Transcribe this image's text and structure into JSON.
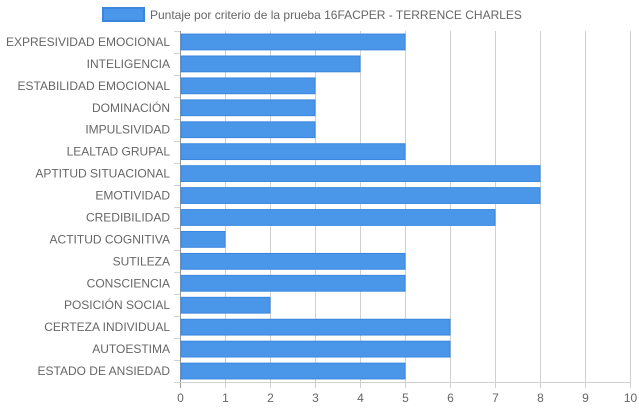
{
  "chart_data": {
    "type": "bar",
    "orientation": "horizontal",
    "title": "",
    "xlabel": "",
    "ylabel": "",
    "legend": {
      "position": "top",
      "entries": [
        "Puntaje por criterio de la prueba 16FACPER - TERRENCE CHARLES"
      ]
    },
    "grid": true,
    "xlim": [
      0,
      10
    ],
    "x_ticks": [
      "0",
      "1",
      "2",
      "3",
      "4",
      "5",
      "6",
      "7",
      "8",
      "9",
      "10"
    ],
    "categories": [
      "EXPRESIVIDAD EMOCIONAL",
      "INTELIGENCIA",
      "ESTABILIDAD EMOCIONAL",
      "DOMINACIÓN",
      "IMPULSIVIDAD",
      "LEALTAD GRUPAL",
      "APTITUD SITUACIONAL",
      "EMOTIVIDAD",
      "CREDIBILIDAD",
      "ACTITUD COGNITIVA",
      "SUTILEZA",
      "CONSCIENCIA",
      "POSICIÓN SOCIAL",
      "CERTEZA INDIVIDUAL",
      "AUTOESTIMA",
      "ESTADO DE ANSIEDAD"
    ],
    "series": [
      {
        "name": "Puntaje por criterio de la prueba 16FACPER - TERRENCE CHARLES",
        "values": [
          5,
          4,
          3,
          3,
          3,
          5,
          8,
          8,
          7,
          1,
          5,
          5,
          2,
          6,
          6,
          5
        ]
      }
    ],
    "colors": {
      "bar_fill": "#4a97e9",
      "bar_stroke": "#3a86de",
      "grid": "#d0d0d0",
      "axis": "#999999",
      "text": "#666666"
    }
  }
}
